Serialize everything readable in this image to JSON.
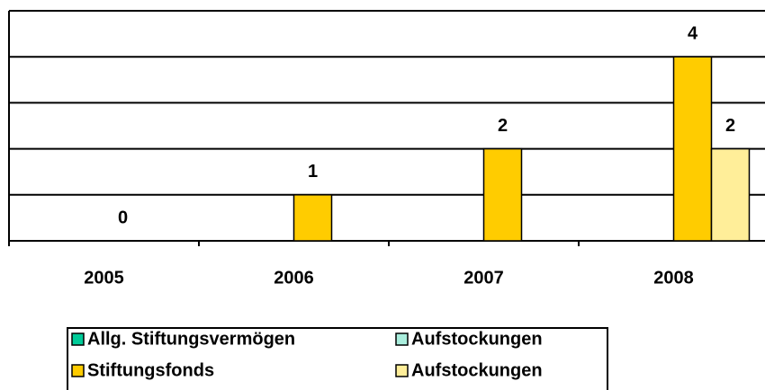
{
  "chart_data": {
    "type": "bar",
    "categories": [
      "2005",
      "2006",
      "2007",
      "2008"
    ],
    "series": [
      {
        "name": "Allg. Stiftungsvermögen",
        "color": "#00cc99",
        "values": [
          null,
          null,
          null,
          null
        ]
      },
      {
        "name": "Aufstockungen",
        "color": "#aaeedd",
        "values": [
          null,
          null,
          null,
          null
        ]
      },
      {
        "name": "Stiftungsfonds",
        "color": "#ffcc00",
        "values": [
          0,
          1,
          2,
          4
        ]
      },
      {
        "name": "Aufstockungen",
        "color": "#ffee99",
        "values": [
          null,
          null,
          null,
          2
        ]
      }
    ],
    "ylim": [
      0,
      5
    ],
    "yticks": [
      0,
      1,
      2,
      3,
      4,
      5
    ],
    "grid": true
  }
}
